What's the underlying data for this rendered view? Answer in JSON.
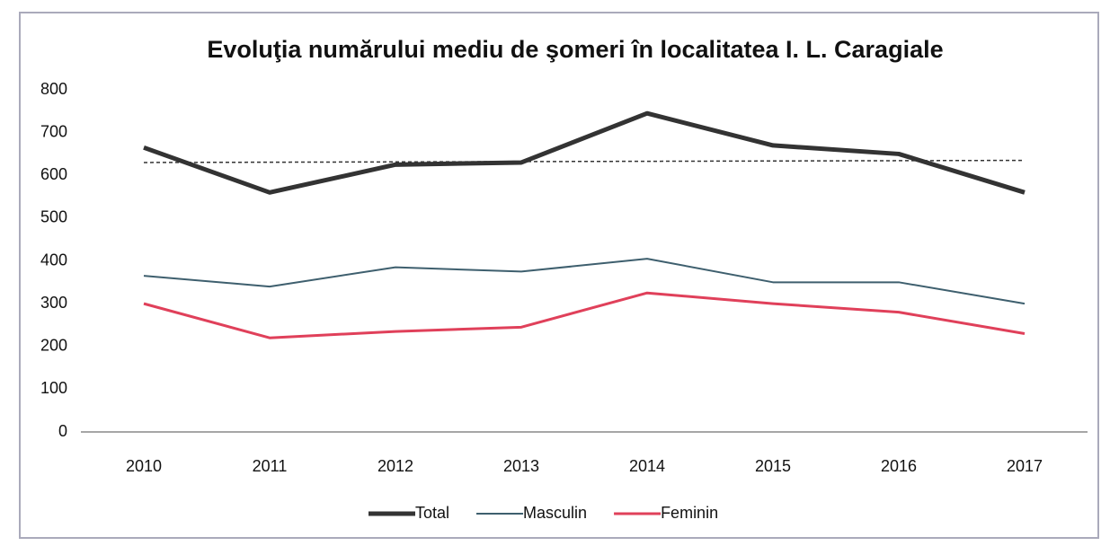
{
  "chart_data": {
    "type": "line",
    "title": "Evoluţia numărului mediu de şomeri în localitatea I. L. Caragiale",
    "categories": [
      "2010",
      "2011",
      "2012",
      "2013",
      "2014",
      "2015",
      "2016",
      "2017"
    ],
    "series": [
      {
        "name": "Total",
        "color": "#333333",
        "values": [
          665,
          560,
          625,
          630,
          745,
          670,
          650,
          560
        ]
      },
      {
        "name": "Masculin",
        "color": "#3e5f6e",
        "values": [
          365,
          340,
          385,
          375,
          405,
          350,
          350,
          300
        ]
      },
      {
        "name": "Feminin",
        "color": "#e0405a",
        "values": [
          300,
          220,
          235,
          245,
          325,
          300,
          280,
          230
        ]
      }
    ],
    "trendline": {
      "color": "#333333",
      "values": [
        630,
        635
      ]
    },
    "ylim": [
      0,
      800
    ],
    "yticks": [
      0,
      100,
      200,
      300,
      400,
      500,
      600,
      700,
      800
    ],
    "legend": "bottom"
  }
}
